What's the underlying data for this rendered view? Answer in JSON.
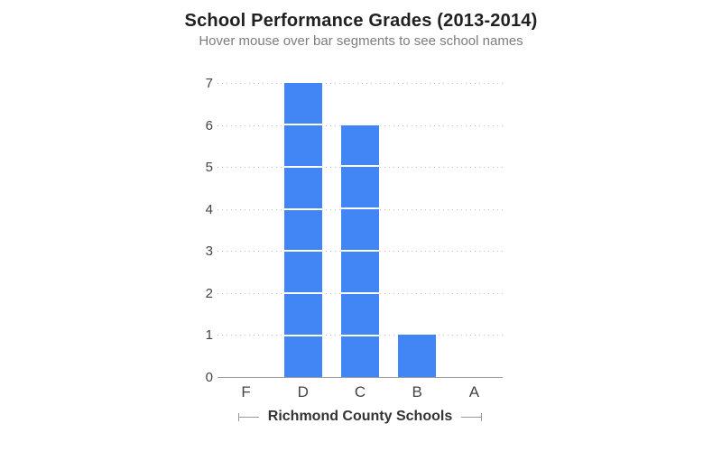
{
  "chart_data": {
    "type": "bar",
    "title": "School Performance Grades (2013-2014)",
    "subtitle": "Hover mouse over bar segments to see school names",
    "categories": [
      "F",
      "D",
      "C",
      "B",
      "A"
    ],
    "values": [
      0,
      7,
      6,
      1,
      0
    ],
    "xlabel": "Richmond County Schools",
    "ylabel": "",
    "ylim": [
      0,
      7
    ],
    "yticks": [
      0,
      1,
      2,
      3,
      4,
      5,
      6,
      7
    ],
    "stacked_unit_segments": true,
    "segment_meaning": "each segment represents one school",
    "legend": "none",
    "grid": "dotted-horizontal",
    "colors": {
      "bar": "#4285f4",
      "segment_separator": "#ffffff",
      "gridline": "#c2c2c2",
      "axis_line": "#9e9e9e",
      "title_text": "#212121",
      "subtitle_text": "#7d7d7d",
      "tick_text": "#444444",
      "axis_title_text": "#333333",
      "bracket": "#999999"
    }
  }
}
